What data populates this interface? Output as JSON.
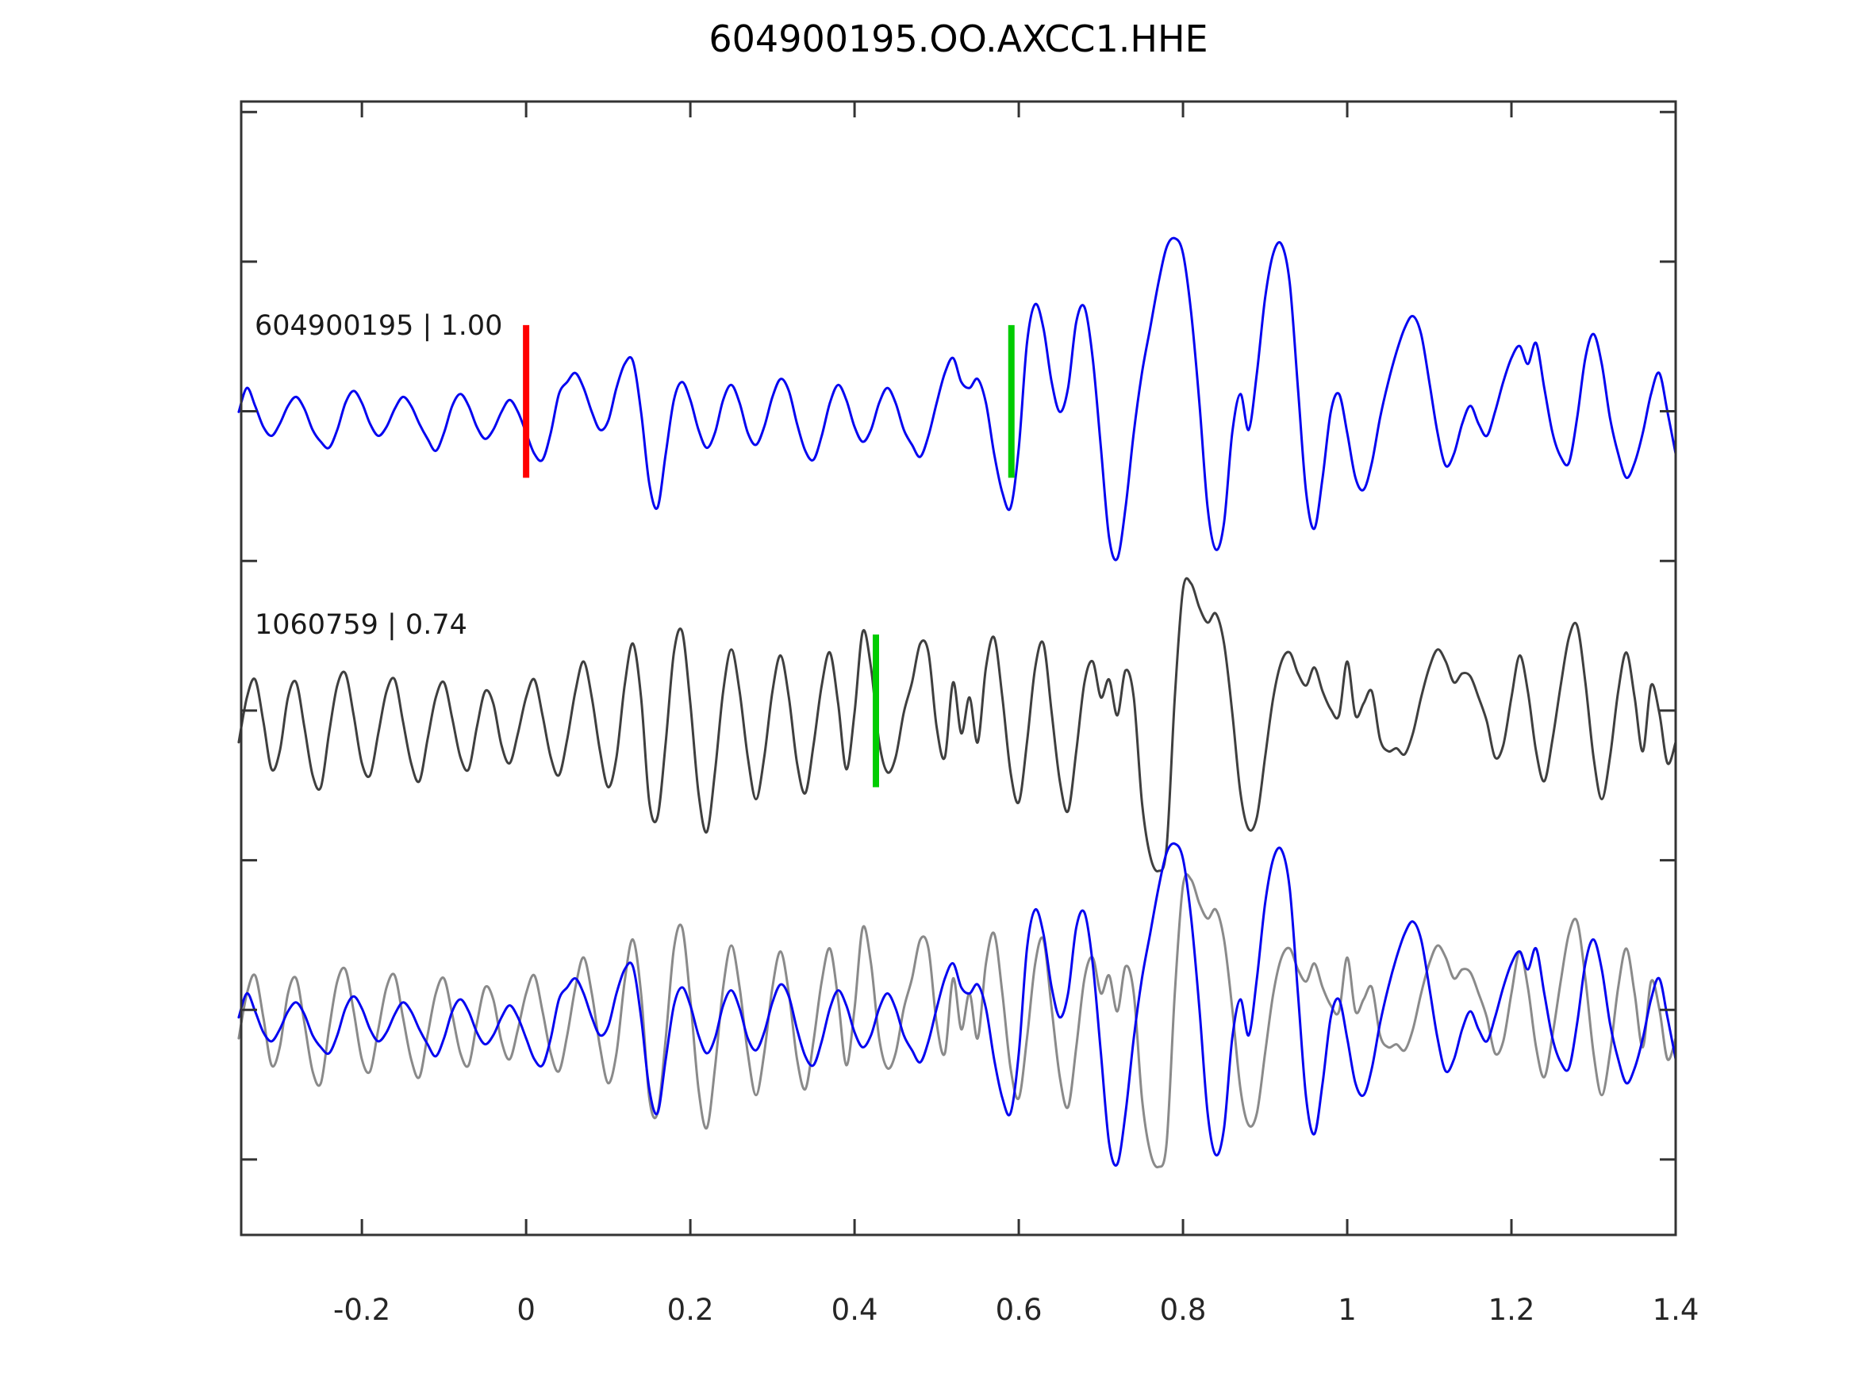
{
  "figure": {
    "title": "604900195.OO.AXCC1.HHE",
    "background_color": "#ffffff",
    "axis_color": "#333333",
    "text_color": "#1a1a1a"
  },
  "chart_data": {
    "type": "line",
    "title": "604900195.OO.AXCC1.HHE",
    "xlabel": "",
    "ylabel": "",
    "grid": false,
    "legend": false,
    "xlim": [
      -0.347,
      1.4
    ],
    "ylim": [
      0.248,
      4.035
    ],
    "xticks": [
      {
        "value": -0.2,
        "label": "-0.2"
      },
      {
        "value": 0,
        "label": "0"
      },
      {
        "value": 0.2,
        "label": "0.2"
      },
      {
        "value": 0.4,
        "label": "0.4"
      },
      {
        "value": 0.6,
        "label": "0.6"
      },
      {
        "value": 0.8,
        "label": "0.8"
      },
      {
        "value": 1,
        "label": "1"
      },
      {
        "value": 1.2,
        "label": "1.2"
      },
      {
        "value": 1.4,
        "label": "1.4"
      }
    ],
    "yticks": [
      0.5,
      1.0,
      1.5,
      2.0,
      2.5,
      3.0,
      3.5,
      4.0
    ],
    "x_start": -0.35,
    "dx": 0.01,
    "series": [
      {
        "name": "detection",
        "id": "604900195",
        "correlation": "1.00",
        "color": "#0505f0",
        "offset": 2.978,
        "values": [
          0.02,
          0.1,
          0.04,
          -0.03,
          -0.06,
          -0.02,
          0.04,
          0.07,
          0.03,
          -0.04,
          -0.08,
          -0.1,
          -0.04,
          0.05,
          0.09,
          0.05,
          -0.02,
          -0.06,
          -0.03,
          0.03,
          0.07,
          0.04,
          -0.02,
          -0.07,
          -0.11,
          -0.05,
          0.04,
          0.08,
          0.04,
          -0.03,
          -0.07,
          -0.04,
          0.02,
          0.06,
          0.02,
          -0.05,
          -0.12,
          -0.14,
          -0.05,
          0.08,
          0.12,
          0.15,
          0.1,
          0.02,
          -0.04,
          -0.01,
          0.1,
          0.18,
          0.19,
          0.02,
          -0.22,
          -0.3,
          -0.12,
          0.06,
          0.12,
          0.06,
          -0.04,
          -0.1,
          -0.05,
          0.06,
          0.11,
          0.05,
          -0.05,
          -0.09,
          -0.03,
          0.07,
          0.13,
          0.09,
          -0.02,
          -0.11,
          -0.14,
          -0.06,
          0.05,
          0.11,
          0.06,
          -0.03,
          -0.08,
          -0.04,
          0.05,
          0.1,
          0.05,
          -0.04,
          -0.09,
          -0.13,
          -0.06,
          0.05,
          0.15,
          0.2,
          0.12,
          0.1,
          0.13,
          0.05,
          -0.12,
          -0.25,
          -0.3,
          -0.1,
          0.25,
          0.38,
          0.3,
          0.12,
          0.02,
          0.1,
          0.32,
          0.37,
          0.2,
          -0.1,
          -0.4,
          -0.47,
          -0.3,
          -0.05,
          0.15,
          0.3,
          0.45,
          0.57,
          0.6,
          0.55,
          0.35,
          0.05,
          -0.3,
          -0.44,
          -0.35,
          -0.05,
          0.08,
          -0.04,
          0.15,
          0.4,
          0.55,
          0.58,
          0.45,
          0.1,
          -0.25,
          -0.37,
          -0.2,
          0.02,
          0.08,
          -0.05,
          -0.2,
          -0.24,
          -0.15,
          0.0,
          0.12,
          0.22,
          0.3,
          0.34,
          0.28,
          0.12,
          -0.05,
          -0.16,
          -0.12,
          -0.02,
          0.04,
          -0.02,
          -0.06,
          0.02,
          0.12,
          0.2,
          0.24,
          0.18,
          0.25,
          0.1,
          -0.05,
          -0.13,
          -0.15,
          0.0,
          0.2,
          0.28,
          0.18,
          0.0,
          -0.12,
          -0.2,
          -0.15,
          -0.05,
          0.08,
          0.15,
          0.02,
          -0.12
        ]
      },
      {
        "name": "template",
        "id": "1060759",
        "correlation": "0.74",
        "color": "#3f3f3f",
        "offset": 1.944,
        "values": [
          -0.05,
          0.1,
          0.16,
          0.02,
          -0.14,
          -0.08,
          0.1,
          0.15,
          0.0,
          -0.16,
          -0.2,
          -0.02,
          0.14,
          0.18,
          0.04,
          -0.12,
          -0.16,
          -0.02,
          0.12,
          0.16,
          0.02,
          -0.12,
          -0.18,
          -0.04,
          0.1,
          0.15,
          0.03,
          -0.1,
          -0.14,
          0.0,
          0.12,
          0.08,
          -0.06,
          -0.12,
          -0.02,
          0.1,
          0.16,
          0.04,
          -0.1,
          -0.16,
          -0.04,
          0.12,
          0.22,
          0.1,
          -0.08,
          -0.2,
          -0.1,
          0.14,
          0.28,
          0.1,
          -0.25,
          -0.3,
          -0.05,
          0.25,
          0.32,
          0.08,
          -0.22,
          -0.35,
          -0.15,
          0.12,
          0.26,
          0.12,
          -0.1,
          -0.24,
          -0.1,
          0.12,
          0.24,
          0.1,
          -0.12,
          -0.22,
          -0.06,
          0.14,
          0.25,
          0.08,
          -0.14,
          0.05,
          0.32,
          0.2,
          -0.05,
          -0.15,
          -0.1,
          0.05,
          0.15,
          0.28,
          0.25,
          0.0,
          -0.1,
          0.15,
          -0.02,
          0.1,
          -0.05,
          0.2,
          0.3,
          0.1,
          -0.15,
          -0.25,
          -0.05,
          0.2,
          0.28,
          0.05,
          -0.18,
          -0.28,
          -0.08,
          0.15,
          0.22,
          0.1,
          0.16,
          0.04,
          0.19,
          0.1,
          -0.25,
          -0.43,
          -0.48,
          -0.4,
          0.1,
          0.46,
          0.48,
          0.4,
          0.35,
          0.38,
          0.28,
          0.05,
          -0.22,
          -0.34,
          -0.3,
          -0.1,
          0.1,
          0.22,
          0.25,
          0.18,
          0.14,
          0.2,
          0.12,
          0.06,
          0.04,
          0.22,
          0.04,
          0.08,
          0.12,
          -0.04,
          -0.08,
          -0.07,
          -0.09,
          -0.02,
          0.1,
          0.2,
          0.26,
          0.22,
          0.15,
          0.18,
          0.17,
          0.1,
          0.02,
          -0.1,
          -0.06,
          0.1,
          0.24,
          0.12,
          -0.08,
          -0.18,
          -0.04,
          0.14,
          0.3,
          0.34,
          0.15,
          -0.1,
          -0.24,
          -0.1,
          0.12,
          0.25,
          0.1,
          -0.08,
          0.14,
          0.05,
          -0.12,
          -0.05
        ]
      }
    ],
    "overlay_row": {
      "offset": 0.955,
      "traces": [
        {
          "ref": "template",
          "color": "#8a8a8a"
        },
        {
          "ref": "detection",
          "color": "#0505f0"
        }
      ]
    },
    "row_labels": [
      {
        "text": "604900195 | 1.00"
      },
      {
        "text": "1060759 | 0.74"
      }
    ],
    "markers": [
      {
        "row": "detection",
        "x": 0.0,
        "color": "#ff0000",
        "kind": "origin-marker"
      },
      {
        "row": "detection",
        "x": 0.591,
        "color": "#00cc00",
        "kind": "pick-marker"
      },
      {
        "row": "template",
        "x": 0.426,
        "color": "#00cc00",
        "kind": "pick-marker"
      }
    ],
    "marker_extent": {
      "up": 0.31,
      "down": 0.2
    }
  }
}
